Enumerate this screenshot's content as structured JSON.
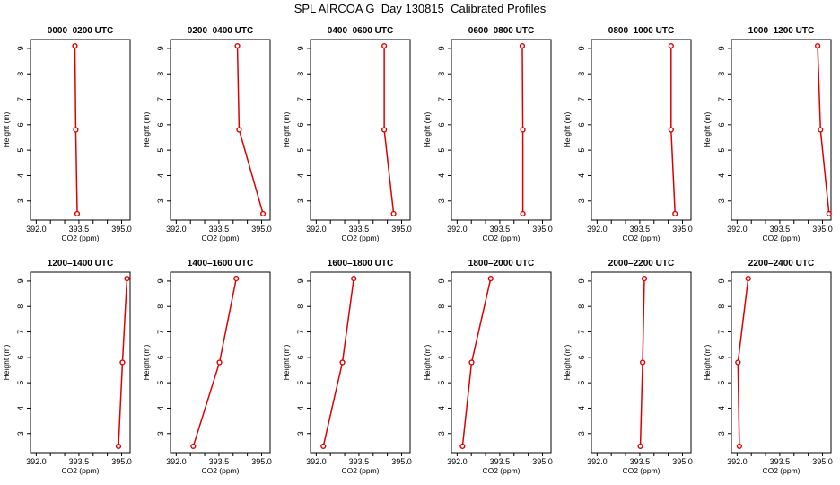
{
  "figure": {
    "title": "SPL AIRCOA G  Day 130815  Calibrated Profiles"
  },
  "colors": {
    "series": "#dd0000",
    "axes": "#000000",
    "background": "#ffffff"
  },
  "chart_data": [
    {
      "type": "line",
      "title": "0000–0200 UTC",
      "xlabel": "CO2 (ppm)",
      "ylabel": "Height (m)",
      "xlim": [
        391.8,
        395.3
      ],
      "ylim": [
        2.25,
        9.35
      ],
      "xticks": [
        392.0,
        392.5,
        393.0,
        393.5,
        394.0,
        394.5,
        395.0
      ],
      "xtick_labels": [
        "392.0",
        "",
        "",
        "393.5",
        "",
        "",
        "395.0"
      ],
      "yticks": [
        3,
        4,
        5,
        6,
        7,
        8,
        9
      ],
      "ytick_labels": [
        "3",
        "4",
        "5",
        "6",
        "7",
        "8",
        "9"
      ],
      "series": [
        {
          "x": [
            393.44,
            393.39,
            393.36
          ],
          "y": [
            2.5,
            5.8,
            9.1
          ]
        }
      ]
    },
    {
      "type": "line",
      "title": "0200–0400 UTC",
      "xlabel": "CO2 (ppm)",
      "ylabel": "Height (m)",
      "xlim": [
        391.8,
        395.3
      ],
      "ylim": [
        2.25,
        9.35
      ],
      "xticks": [
        392.0,
        392.5,
        393.0,
        393.5,
        394.0,
        394.5,
        395.0
      ],
      "xtick_labels": [
        "392.0",
        "",
        "",
        "393.5",
        "",
        "",
        "395.0"
      ],
      "yticks": [
        3,
        4,
        5,
        6,
        7,
        8,
        9
      ],
      "ytick_labels": [
        "3",
        "4",
        "5",
        "6",
        "7",
        "8",
        "9"
      ],
      "series": [
        {
          "x": [
            395.05,
            394.21,
            394.15
          ],
          "y": [
            2.5,
            5.8,
            9.1
          ]
        }
      ]
    },
    {
      "type": "line",
      "title": "0400–0600 UTC",
      "xlabel": "CO2 (ppm)",
      "ylabel": "Height (m)",
      "xlim": [
        391.8,
        395.3
      ],
      "ylim": [
        2.25,
        9.35
      ],
      "xticks": [
        392.0,
        392.5,
        393.0,
        393.5,
        394.0,
        394.5,
        395.0
      ],
      "xtick_labels": [
        "392.0",
        "",
        "",
        "393.5",
        "",
        "",
        "395.0"
      ],
      "yticks": [
        3,
        4,
        5,
        6,
        7,
        8,
        9
      ],
      "ytick_labels": [
        "3",
        "4",
        "5",
        "6",
        "7",
        "8",
        "9"
      ],
      "series": [
        {
          "x": [
            394.72,
            394.39,
            394.39
          ],
          "y": [
            2.5,
            5.8,
            9.1
          ]
        }
      ]
    },
    {
      "type": "line",
      "title": "0600–0800 UTC",
      "xlabel": "CO2 (ppm)",
      "ylabel": "Height (m)",
      "xlim": [
        391.8,
        395.3
      ],
      "ylim": [
        2.25,
        9.35
      ],
      "xticks": [
        392.0,
        392.5,
        393.0,
        393.5,
        394.0,
        394.5,
        395.0
      ],
      "xtick_labels": [
        "392.0",
        "",
        "",
        "393.5",
        "",
        "",
        "395.0"
      ],
      "yticks": [
        3,
        4,
        5,
        6,
        7,
        8,
        9
      ],
      "ytick_labels": [
        "3",
        "4",
        "5",
        "6",
        "7",
        "8",
        "9"
      ],
      "series": [
        {
          "x": [
            394.31,
            394.31,
            394.29
          ],
          "y": [
            2.5,
            5.8,
            9.1
          ]
        }
      ]
    },
    {
      "type": "line",
      "title": "0800–1000 UTC",
      "xlabel": "CO2 (ppm)",
      "ylabel": "Height (m)",
      "xlim": [
        391.8,
        395.3
      ],
      "ylim": [
        2.25,
        9.35
      ],
      "xticks": [
        392.0,
        392.5,
        393.0,
        393.5,
        394.0,
        394.5,
        395.0
      ],
      "xtick_labels": [
        "392.0",
        "",
        "",
        "393.5",
        "",
        "",
        "395.0"
      ],
      "yticks": [
        3,
        4,
        5,
        6,
        7,
        8,
        9
      ],
      "ytick_labels": [
        "3",
        "4",
        "5",
        "6",
        "7",
        "8",
        "9"
      ],
      "series": [
        {
          "x": [
            394.74,
            394.6,
            394.6
          ],
          "y": [
            2.5,
            5.8,
            9.1
          ]
        }
      ]
    },
    {
      "type": "line",
      "title": "1000–1200 UTC",
      "xlabel": "CO2 (ppm)",
      "ylabel": "Height (m)",
      "xlim": [
        391.8,
        395.3
      ],
      "ylim": [
        2.25,
        9.35
      ],
      "xticks": [
        392.0,
        392.5,
        393.0,
        393.5,
        394.0,
        394.5,
        395.0
      ],
      "xtick_labels": [
        "392.0",
        "",
        "",
        "393.5",
        "",
        "",
        "395.0"
      ],
      "yticks": [
        3,
        4,
        5,
        6,
        7,
        8,
        9
      ],
      "ytick_labels": [
        "3",
        "4",
        "5",
        "6",
        "7",
        "8",
        "9"
      ],
      "series": [
        {
          "x": [
            395.23,
            394.93,
            394.83
          ],
          "y": [
            2.5,
            5.8,
            9.1
          ]
        }
      ]
    },
    {
      "type": "line",
      "title": "1200–1400 UTC",
      "xlabel": "CO2 (ppm)",
      "ylabel": "Height (m)",
      "xlim": [
        391.8,
        395.3
      ],
      "ylim": [
        2.25,
        9.35
      ],
      "xticks": [
        392.0,
        392.5,
        393.0,
        393.5,
        394.0,
        394.5,
        395.0
      ],
      "xtick_labels": [
        "392.0",
        "",
        "",
        "393.5",
        "",
        "",
        "395.0"
      ],
      "yticks": [
        3,
        4,
        5,
        6,
        7,
        8,
        9
      ],
      "ytick_labels": [
        "3",
        "4",
        "5",
        "6",
        "7",
        "8",
        "9"
      ],
      "series": [
        {
          "x": [
            394.89,
            395.03,
            395.19
          ],
          "y": [
            2.5,
            5.8,
            9.1
          ]
        }
      ]
    },
    {
      "type": "line",
      "title": "1400–1600 UTC",
      "xlabel": "CO2 (ppm)",
      "ylabel": "Height (m)",
      "xlim": [
        391.8,
        395.3
      ],
      "ylim": [
        2.25,
        9.35
      ],
      "xticks": [
        392.0,
        392.5,
        393.0,
        393.5,
        394.0,
        394.5,
        395.0
      ],
      "xtick_labels": [
        "392.0",
        "",
        "",
        "393.5",
        "",
        "",
        "395.0"
      ],
      "yticks": [
        3,
        4,
        5,
        6,
        7,
        8,
        9
      ],
      "ytick_labels": [
        "3",
        "4",
        "5",
        "6",
        "7",
        "8",
        "9"
      ],
      "series": [
        {
          "x": [
            392.6,
            393.52,
            394.11
          ],
          "y": [
            2.5,
            5.8,
            9.1
          ]
        }
      ]
    },
    {
      "type": "line",
      "title": "1600–1800 UTC",
      "xlabel": "CO2 (ppm)",
      "ylabel": "Height (m)",
      "xlim": [
        391.8,
        395.3
      ],
      "ylim": [
        2.25,
        9.35
      ],
      "xticks": [
        392.0,
        392.5,
        393.0,
        393.5,
        394.0,
        394.5,
        395.0
      ],
      "xtick_labels": [
        "392.0",
        "",
        "",
        "393.5",
        "",
        "",
        "395.0"
      ],
      "yticks": [
        3,
        4,
        5,
        6,
        7,
        8,
        9
      ],
      "ytick_labels": [
        "3",
        "4",
        "5",
        "6",
        "7",
        "8",
        "9"
      ],
      "series": [
        {
          "x": [
            392.25,
            392.92,
            393.32
          ],
          "y": [
            2.5,
            5.8,
            9.1
          ]
        }
      ]
    },
    {
      "type": "line",
      "title": "1800–2000 UTC",
      "xlabel": "CO2 (ppm)",
      "ylabel": "Height (m)",
      "xlim": [
        391.8,
        395.3
      ],
      "ylim": [
        2.25,
        9.35
      ],
      "xticks": [
        392.0,
        392.5,
        393.0,
        393.5,
        394.0,
        394.5,
        395.0
      ],
      "xtick_labels": [
        "392.0",
        "",
        "",
        "393.5",
        "",
        "",
        "395.0"
      ],
      "yticks": [
        3,
        4,
        5,
        6,
        7,
        8,
        9
      ],
      "ytick_labels": [
        "3",
        "4",
        "5",
        "6",
        "7",
        "8",
        "9"
      ],
      "series": [
        {
          "x": [
            392.19,
            392.51,
            393.18
          ],
          "y": [
            2.5,
            5.8,
            9.1
          ]
        }
      ]
    },
    {
      "type": "line",
      "title": "2000–2200 UTC",
      "xlabel": "CO2 (ppm)",
      "ylabel": "Height (m)",
      "xlim": [
        391.8,
        395.3
      ],
      "ylim": [
        2.25,
        9.35
      ],
      "xticks": [
        392.0,
        392.5,
        393.0,
        393.5,
        394.0,
        394.5,
        395.0
      ],
      "xtick_labels": [
        "392.0",
        "",
        "",
        "393.5",
        "",
        "",
        "395.0"
      ],
      "yticks": [
        3,
        4,
        5,
        6,
        7,
        8,
        9
      ],
      "ytick_labels": [
        "3",
        "4",
        "5",
        "6",
        "7",
        "8",
        "9"
      ],
      "series": [
        {
          "x": [
            393.52,
            393.6,
            393.66
          ],
          "y": [
            2.5,
            5.8,
            9.1
          ]
        }
      ]
    },
    {
      "type": "line",
      "title": "2200–2400 UTC",
      "xlabel": "CO2 (ppm)",
      "ylabel": "Height (m)",
      "xlim": [
        391.8,
        395.3
      ],
      "ylim": [
        2.25,
        9.35
      ],
      "xticks": [
        392.0,
        392.5,
        393.0,
        393.5,
        394.0,
        394.5,
        395.0
      ],
      "xtick_labels": [
        "392.0",
        "",
        "",
        "393.5",
        "",
        "",
        "395.0"
      ],
      "yticks": [
        3,
        4,
        5,
        6,
        7,
        8,
        9
      ],
      "ytick_labels": [
        "3",
        "4",
        "5",
        "6",
        "7",
        "8",
        "9"
      ],
      "series": [
        {
          "x": [
            392.08,
            392.03,
            392.39
          ],
          "y": [
            2.5,
            5.8,
            9.1
          ]
        }
      ]
    }
  ]
}
